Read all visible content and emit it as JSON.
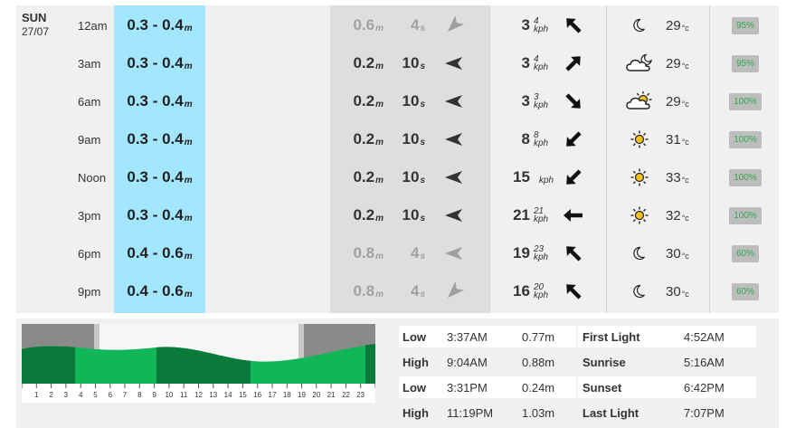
{
  "day": {
    "name": "SUN",
    "date": "27/07"
  },
  "units": {
    "metre": "m",
    "second": "s",
    "kph": "kph",
    "celsius": "°c"
  },
  "rows": [
    {
      "time": "12am",
      "surf": "0.3 - 0.4",
      "swell_height": "0.6",
      "swell_period": "4",
      "swell_dim": true,
      "swell_dir_icon": "arrow-down-left-icon",
      "wind": "3",
      "gust": "4",
      "wind_dir_icon": "arrow-up-left-icon",
      "weather_icon": "moon-icon",
      "temp": "29",
      "chance": "95%"
    },
    {
      "time": "3am",
      "surf": "0.3 - 0.4",
      "swell_height": "0.2",
      "swell_period": "10",
      "swell_dim": false,
      "swell_dir_icon": "arrow-left-icon",
      "wind": "3",
      "gust": "4",
      "wind_dir_icon": "arrow-up-right-icon",
      "weather_icon": "cloud-moon-icon",
      "temp": "29",
      "chance": "95%"
    },
    {
      "time": "6am",
      "surf": "0.3 - 0.4",
      "swell_height": "0.2",
      "swell_period": "10",
      "swell_dim": false,
      "swell_dir_icon": "arrow-left-icon",
      "wind": "3",
      "gust": "3",
      "wind_dir_icon": "arrow-down-right-icon",
      "weather_icon": "cloud-sun-icon",
      "temp": "29",
      "chance": "100%"
    },
    {
      "time": "9am",
      "surf": "0.3 - 0.4",
      "swell_height": "0.2",
      "swell_period": "10",
      "swell_dim": false,
      "swell_dir_icon": "arrow-left-icon",
      "wind": "8",
      "gust": "8",
      "wind_dir_icon": "arrow-down-left-icon",
      "weather_icon": "sun-icon",
      "temp": "31",
      "chance": "100%"
    },
    {
      "time": "Noon",
      "surf": "0.3 - 0.4",
      "swell_height": "0.2",
      "swell_period": "10",
      "swell_dim": false,
      "swell_dir_icon": "arrow-left-icon",
      "wind": "15",
      "gust": "",
      "wind_dir_icon": "arrow-down-left-icon",
      "weather_icon": "sun-icon",
      "temp": "33",
      "chance": "100%"
    },
    {
      "time": "3pm",
      "surf": "0.3 - 0.4",
      "swell_height": "0.2",
      "swell_period": "10",
      "swell_dim": false,
      "swell_dir_icon": "arrow-left-icon",
      "wind": "21",
      "gust": "21",
      "wind_dir_icon": "arrow-left-icon",
      "weather_icon": "sun-icon",
      "temp": "32",
      "chance": "100%"
    },
    {
      "time": "6pm",
      "surf": "0.4 - 0.6",
      "swell_height": "0.8",
      "swell_period": "4",
      "swell_dim": true,
      "swell_dir_icon": "arrow-left-icon",
      "wind": "19",
      "gust": "23",
      "wind_dir_icon": "arrow-up-left-icon",
      "weather_icon": "moon-icon",
      "temp": "30",
      "chance": "60%"
    },
    {
      "time": "9pm",
      "surf": "0.4 - 0.6",
      "swell_height": "0.8",
      "swell_period": "4",
      "swell_dim": true,
      "swell_dir_icon": "arrow-down-left-icon",
      "wind": "16",
      "gust": "20",
      "wind_dir_icon": "arrow-up-left-icon",
      "weather_icon": "moon-icon",
      "temp": "30",
      "chance": "60%"
    }
  ],
  "tide_chart": {
    "hour_labels": [
      "1",
      "2",
      "3",
      "4",
      "5",
      "6",
      "7",
      "8",
      "9",
      "10",
      "11",
      "12",
      "13",
      "14",
      "15",
      "16",
      "17",
      "18",
      "19",
      "20",
      "21",
      "22",
      "23"
    ],
    "colors": {
      "dark": "#0a7a3a",
      "light": "#10b658",
      "night": "#8a8a8a",
      "twilight": "#c8c8c8",
      "day": "#f6f6f6"
    }
  },
  "tide_table": [
    {
      "type": "Low",
      "time": "3:37AM",
      "height": "0.77m",
      "label": "First Light",
      "label_time": "4:52AM"
    },
    {
      "type": "High",
      "time": "9:04AM",
      "height": "0.88m",
      "label": "Sunrise",
      "label_time": "5:16AM"
    },
    {
      "type": "Low",
      "time": "3:31PM",
      "height": "0.24m",
      "label": "Sunset",
      "label_time": "6:42PM"
    },
    {
      "type": "High",
      "time": "11:19PM",
      "height": "1.03m",
      "label": "Last Light",
      "label_time": "7:07PM"
    }
  ]
}
